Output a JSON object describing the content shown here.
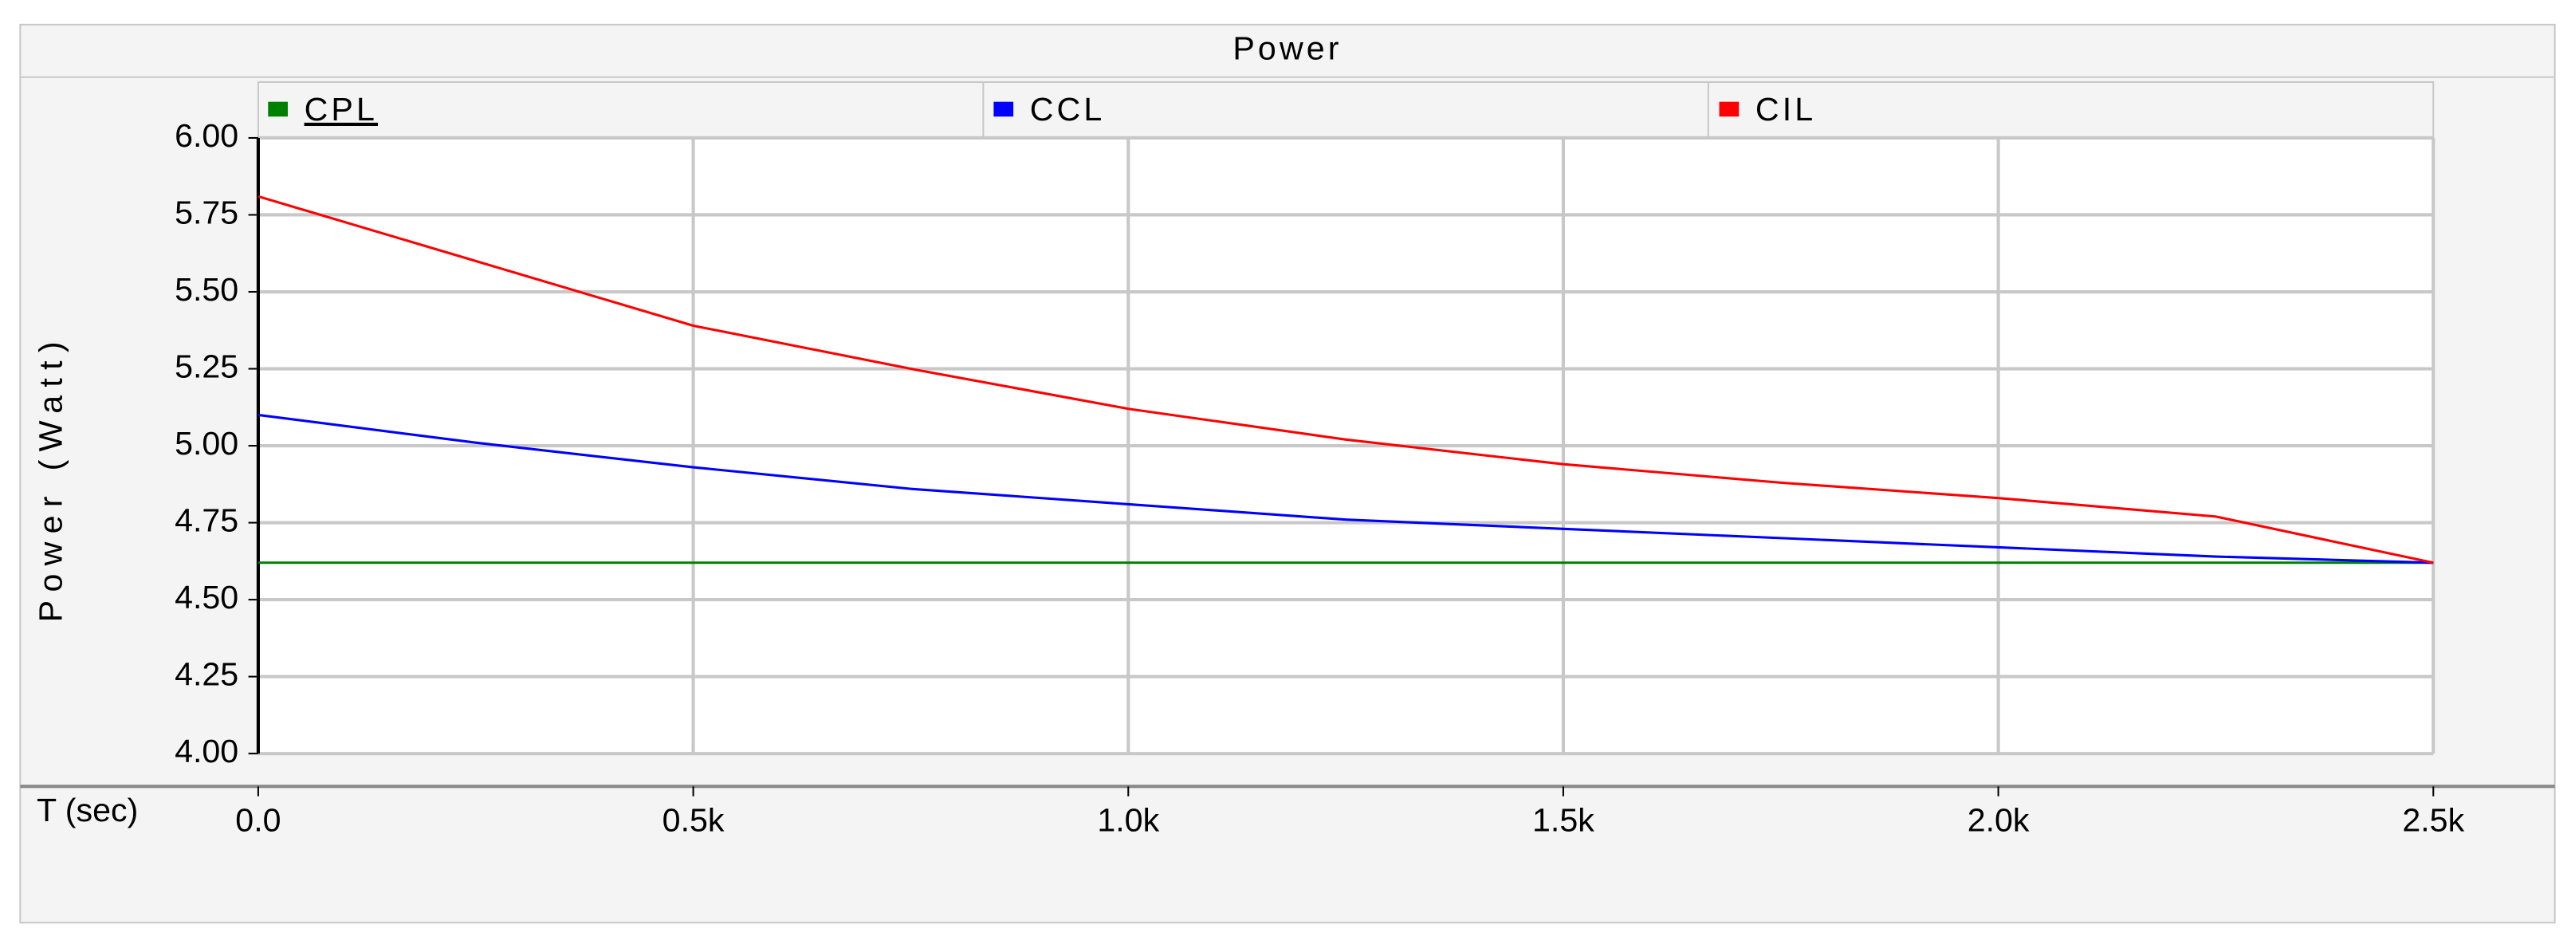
{
  "chart_data": {
    "type": "line",
    "title": "Power",
    "x_label": "T (sec)",
    "y_label": "Power (Watt)",
    "x": [
      0,
      250,
      500,
      750,
      1000,
      1250,
      1500,
      1750,
      2000,
      2250,
      2500
    ],
    "series": [
      {
        "name": "CPL",
        "color": "#008000",
        "values": [
          4.62,
          4.62,
          4.62,
          4.62,
          4.62,
          4.62,
          4.62,
          4.62,
          4.62,
          4.62,
          4.62
        ]
      },
      {
        "name": "CCL",
        "color": "#0000ff",
        "values": [
          5.1,
          5.01,
          4.93,
          4.86,
          4.81,
          4.76,
          4.73,
          4.7,
          4.67,
          4.64,
          4.62
        ]
      },
      {
        "name": "CIL",
        "color": "#ff0000",
        "values": [
          5.81,
          5.6,
          5.39,
          5.25,
          5.12,
          5.02,
          4.94,
          4.88,
          4.83,
          4.77,
          4.62
        ]
      }
    ],
    "xlim": [
      0,
      2500
    ],
    "xticks": [
      {
        "value": 0,
        "label": "0.0"
      },
      {
        "value": 500,
        "label": "0.5k"
      },
      {
        "value": 1000,
        "label": "1.0k"
      },
      {
        "value": 1500,
        "label": "1.5k"
      },
      {
        "value": 2000,
        "label": "2.0k"
      },
      {
        "value": 2500,
        "label": "2.5k"
      }
    ],
    "ylim": [
      4,
      6
    ],
    "yticks": [
      {
        "value": 4,
        "label": "4.00"
      },
      {
        "value": 4.25,
        "label": "4.25"
      },
      {
        "value": 4.5,
        "label": "4.50"
      },
      {
        "value": 4.75,
        "label": "4.75"
      },
      {
        "value": 5,
        "label": "5.00"
      },
      {
        "value": 5.25,
        "label": "5.25"
      },
      {
        "value": 5.5,
        "label": "5.50"
      },
      {
        "value": 5.75,
        "label": "5.75"
      },
      {
        "value": 6,
        "label": "6.00"
      }
    ],
    "grid": true
  }
}
